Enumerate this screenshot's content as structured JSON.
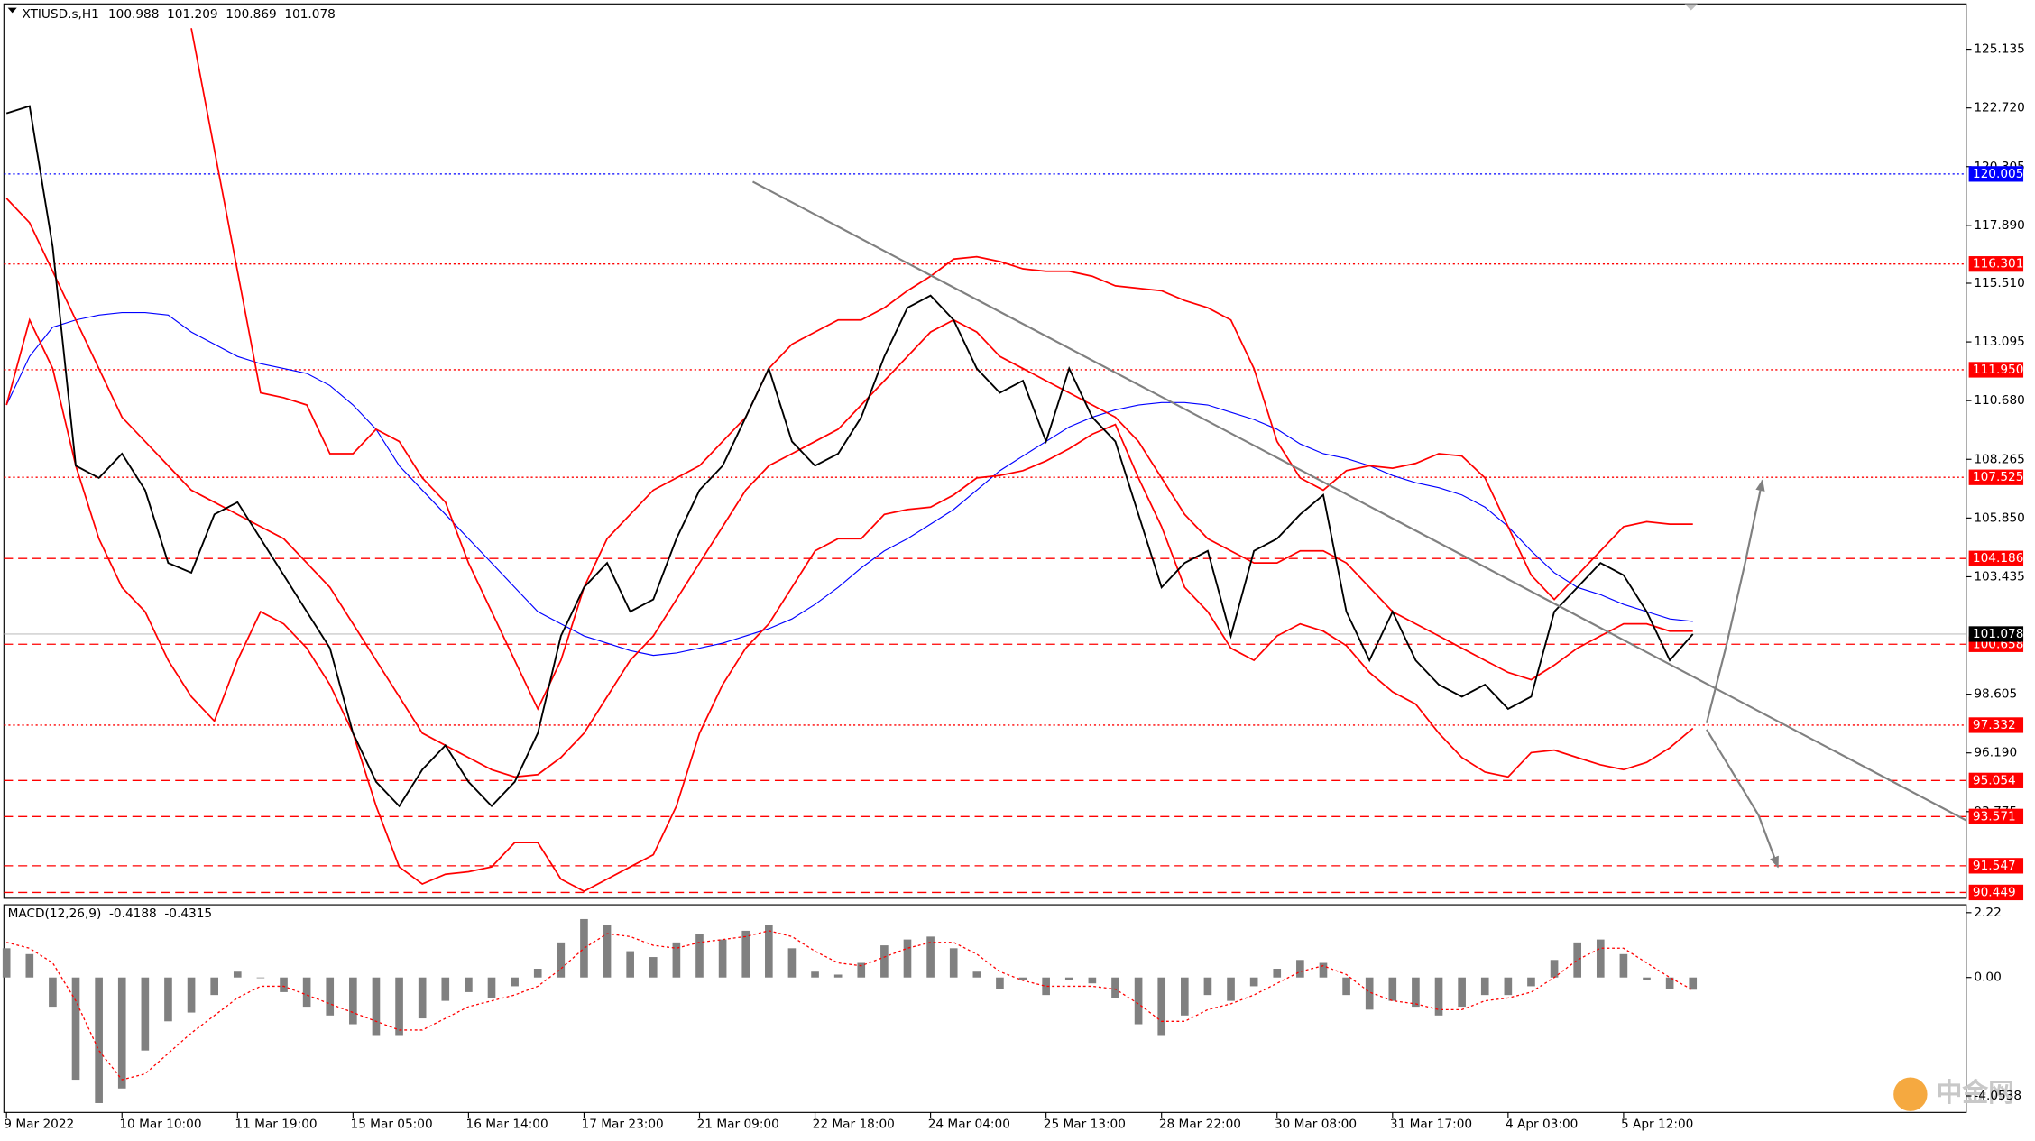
{
  "chart_data": [
    {
      "type": "line",
      "symbol": "XTIUSD.s,H1",
      "ohlc": [
        100.988,
        101.209,
        100.869,
        101.078
      ],
      "watermark": "中金网",
      "categories": [
        "9 Mar 2022",
        null,
        null,
        null,
        null,
        "10 Mar 10:00",
        null,
        null,
        null,
        null,
        "11 Mar 19:00",
        null,
        null,
        null,
        null,
        "15 Mar 05:00",
        null,
        null,
        null,
        null,
        "16 Mar 14:00",
        null,
        null,
        null,
        null,
        "17 Mar 23:00",
        null,
        null,
        null,
        null,
        "21 Mar 09:00",
        null,
        null,
        null,
        null,
        "22 Mar 18:00",
        null,
        null,
        null,
        null,
        "24 Mar 04:00",
        null,
        null,
        null,
        null,
        "25 Mar 13:00",
        null,
        null,
        null,
        null,
        "28 Mar 22:00",
        null,
        null,
        null,
        null,
        "30 Mar 08:00",
        null,
        null,
        null,
        null,
        "31 Mar 17:00",
        null,
        null,
        null,
        null,
        "4 Apr 03:00",
        null,
        null,
        null,
        null,
        "5 Apr 12:00",
        null,
        null,
        null
      ],
      "series": [
        {
          "color": "#000000",
          "width": 1.3,
          "values": [
            122.5,
            122.8,
            117,
            108,
            107.5,
            108.5,
            107,
            104,
            103.6,
            106,
            106.5,
            105,
            103.5,
            102,
            100.5,
            97,
            95,
            94,
            95.5,
            96.5,
            95,
            94,
            95,
            97,
            101,
            103,
            104,
            102,
            102.5,
            105,
            107,
            108,
            110,
            112,
            109,
            108,
            108.5,
            110,
            112.5,
            114.5,
            115,
            114,
            112,
            111,
            111.5,
            109,
            112,
            110,
            109,
            106,
            103,
            104,
            104.5,
            101,
            104.5,
            105,
            106,
            106.8,
            102,
            100,
            102,
            100,
            99,
            98.5,
            99,
            98,
            98.5,
            102,
            103,
            104,
            103.5,
            102,
            100,
            101.078
          ]
        },
        {
          "color": "#ff0000",
          "width": 1.2,
          "values": [
            119,
            118,
            116,
            114,
            112,
            110,
            109,
            108,
            107,
            106.5,
            106,
            105.5,
            105,
            104,
            103,
            101.5,
            100,
            98.5,
            97,
            96.5,
            96,
            95.5,
            95.2,
            95.3,
            96,
            97,
            98.5,
            100,
            101,
            102.5,
            104,
            105.5,
            107,
            108,
            108.5,
            109,
            109.5,
            110.5,
            111.5,
            112.5,
            113.5,
            114,
            113.5,
            112.5,
            112,
            111.5,
            111,
            110.5,
            110,
            109,
            107.5,
            106,
            105,
            104.5,
            104,
            104,
            104.5,
            104.5,
            104,
            103,
            102,
            101.5,
            101,
            100.5,
            100,
            99.5,
            99.2,
            99.8,
            100.5,
            101,
            101.5,
            101.5,
            101.2,
            101.2
          ]
        },
        {
          "color": "#ff0000",
          "width": 1.2,
          "values": [
            null,
            null,
            null,
            null,
            null,
            null,
            null,
            null,
            126,
            121,
            116,
            111,
            110.8,
            110.5,
            108.5,
            108.5,
            109.5,
            109,
            107.5,
            106.5,
            104,
            102,
            100,
            98,
            100,
            103,
            105,
            106,
            107,
            107.5,
            108,
            109,
            110,
            112,
            113,
            113.5,
            114,
            114,
            114.5,
            115.2,
            115.8,
            116.5,
            116.6,
            116.4,
            116.1,
            116,
            116,
            115.8,
            115.4,
            115.3,
            115.2,
            114.8,
            114.5,
            114,
            112,
            109,
            107.5,
            107,
            107.8,
            108,
            107.9,
            108.1,
            108.5,
            108.4,
            107.5,
            105.5,
            103.5,
            102.5,
            103.5,
            104.5,
            105.5,
            105.7,
            105.6,
            105.6
          ]
        },
        {
          "color": "#ff0000",
          "width": 1.2,
          "values": [
            110.5,
            114,
            112,
            108,
            105,
            103,
            102,
            100,
            98.5,
            97.5,
            100,
            102,
            101.5,
            100.5,
            99,
            97,
            94,
            91.5,
            90.8,
            91.2,
            91.3,
            91.5,
            92.5,
            92.5,
            91,
            90.5,
            91,
            91.5,
            92,
            94,
            97,
            99,
            100.5,
            101.5,
            103,
            104.5,
            105,
            105,
            106,
            106.2,
            106.3,
            106.8,
            107.5,
            107.6,
            107.8,
            108.2,
            108.7,
            109.3,
            109.7,
            107.5,
            105.5,
            103,
            102,
            100.5,
            100,
            101,
            101.5,
            101.2,
            100.6,
            99.5,
            98.7,
            98.2,
            97,
            96,
            95.4,
            95.2,
            96.2,
            96.3,
            96,
            95.7,
            95.5,
            95.8,
            96.4,
            97.2
          ]
        },
        {
          "color": "#0000ff",
          "width": 0.8,
          "values": [
            110.5,
            112.5,
            113.7,
            114,
            114.2,
            114.3,
            114.3,
            114.2,
            113.5,
            113,
            112.5,
            112.2,
            112,
            111.8,
            111.3,
            110.5,
            109.5,
            108,
            107,
            106,
            105,
            104,
            103,
            102,
            101.5,
            101,
            100.7,
            100.4,
            100.2,
            100.3,
            100.5,
            100.7,
            101,
            101.3,
            101.7,
            102.3,
            103,
            103.8,
            104.5,
            105,
            105.6,
            106.2,
            107,
            107.8,
            108.4,
            109,
            109.6,
            110,
            110.3,
            110.5,
            110.6,
            110.6,
            110.5,
            110.2,
            109.9,
            109.5,
            108.9,
            108.5,
            108.3,
            108,
            107.6,
            107.3,
            107.1,
            106.8,
            106.3,
            105.5,
            104.5,
            103.6,
            103,
            102.7,
            102.3,
            102,
            101.7,
            101.6
          ]
        }
      ],
      "levels": [
        {
          "value": 120.005,
          "color": "#0000ff",
          "style": "dotted"
        },
        {
          "value": 116.301,
          "color": "#ff0000",
          "style": "dotted"
        },
        {
          "value": 111.95,
          "label": "111.950",
          "color": "#ff0000",
          "style": "dotted"
        },
        {
          "value": 107.525,
          "color": "#ff0000",
          "style": "dotted"
        },
        {
          "value": 104.186,
          "color": "#ff0000",
          "style": "dashed"
        },
        {
          "value": 100.658,
          "color": "#ff0000",
          "style": "dashed"
        },
        {
          "value": 97.332,
          "color": "#ff0000",
          "style": "dotted"
        },
        {
          "value": 95.054,
          "color": "#ff0000",
          "style": "dashed"
        },
        {
          "value": 93.571,
          "color": "#ff0000",
          "style": "dashed"
        },
        {
          "value": 91.547,
          "color": "#ff0000",
          "style": "dashed"
        },
        {
          "value": 90.449,
          "color": "#ff0000",
          "style": "dashed"
        }
      ],
      "ylim": [
        90.21,
        127.0
      ],
      "yticks": [
        125.135,
        {
          "value": 122.72,
          "label": "122.720"
        },
        120.305,
        {
          "value": 117.89,
          "label": "117.890"
        },
        {
          "value": 115.51,
          "label": "115.510"
        },
        113.095,
        {
          "value": 110.68,
          "label": "110.680"
        },
        108.265,
        {
          "value": 105.85,
          "label": "105.850"
        },
        103.435,
        98.605,
        {
          "value": 96.19,
          "label": "96.190"
        },
        93.775
      ]
    },
    {
      "type": "bar",
      "title": "MACD(12,26,9)",
      "readouts": [
        -0.4188,
        -0.4315
      ],
      "color": "#808080",
      "values": [
        1.0,
        0.8,
        -1.0,
        -3.5,
        -4.3,
        -3.8,
        -2.5,
        -1.5,
        -1.2,
        -0.6,
        0.2,
        0,
        -0.5,
        -1.0,
        -1.3,
        -1.6,
        -2.0,
        -2.0,
        -1.4,
        -0.8,
        -0.5,
        -0.7,
        -0.3,
        0.3,
        1.2,
        2.0,
        1.8,
        0.9,
        0.7,
        1.2,
        1.5,
        1.3,
        1.6,
        1.8,
        1.0,
        0.2,
        0.1,
        0.5,
        1.1,
        1.3,
        1.4,
        1.0,
        0.2,
        -0.4,
        -0.1,
        -0.6,
        -0.1,
        -0.2,
        -0.7,
        -1.6,
        -2.0,
        -1.3,
        -0.6,
        -0.8,
        -0.3,
        0.3,
        0.6,
        0.5,
        -0.6,
        -1.1,
        -0.8,
        -1.0,
        -1.3,
        -1.0,
        -0.6,
        -0.6,
        -0.3,
        0.6,
        1.2,
        1.3,
        0.8,
        -0.1,
        -0.4,
        -0.4188
      ],
      "signal": {
        "color": "#ff0000",
        "values": [
          1.2,
          1.0,
          0.5,
          -0.8,
          -2.5,
          -3.5,
          -3.3,
          -2.6,
          -1.9,
          -1.3,
          -0.7,
          -0.3,
          -0.3,
          -0.6,
          -0.9,
          -1.2,
          -1.5,
          -1.8,
          -1.8,
          -1.4,
          -1.0,
          -0.8,
          -0.6,
          -0.3,
          0.3,
          1.0,
          1.5,
          1.4,
          1.1,
          1.0,
          1.2,
          1.3,
          1.4,
          1.6,
          1.4,
          0.9,
          0.5,
          0.4,
          0.7,
          1.0,
          1.2,
          1.2,
          0.8,
          0.2,
          -0.1,
          -0.3,
          -0.3,
          -0.3,
          -0.4,
          -0.9,
          -1.5,
          -1.5,
          -1.1,
          -0.9,
          -0.6,
          -0.2,
          0.2,
          0.4,
          0.1,
          -0.5,
          -0.8,
          -0.9,
          -1.1,
          -1.1,
          -0.8,
          -0.7,
          -0.5,
          0.0,
          0.6,
          1.0,
          1.0,
          0.5,
          0.0,
          -0.4315
        ]
      },
      "ylim": [
        -4.62,
        2.49
      ],
      "yticks": [
        2.22,
        {
          "value": 0,
          "label": "0.00"
        },
        -4.0538
      ]
    }
  ]
}
